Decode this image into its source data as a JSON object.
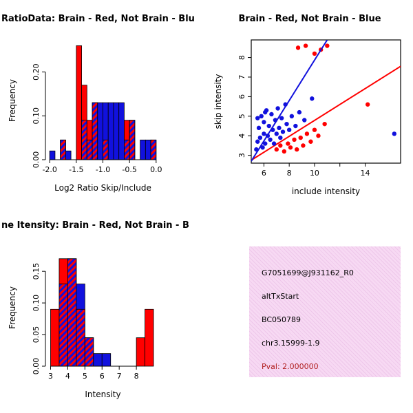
{
  "colors": {
    "red": "#ff0000",
    "blue": "#1111dd",
    "axis": "#000000",
    "pval": "#b22222"
  },
  "chart_data": [
    {
      "type": "bar",
      "id": "hist_ratio",
      "title": "RatioData: Brain - Red, Not Brain - Blu",
      "xlabel": "Log2 Ratio Skip/Include",
      "ylabel": "Frequency",
      "bin_start": -2.0,
      "bin_width": 0.1,
      "series": [
        {
          "name": "Brain (red)",
          "color": "red",
          "values": [
            0,
            0,
            0.045,
            0,
            0,
            0.26,
            0.17,
            0.09,
            0.13,
            0,
            0.045,
            0,
            0,
            0,
            0.09,
            0.09,
            0,
            0,
            0,
            0.045
          ]
        },
        {
          "name": "Not Brain (blue)",
          "color": "blue",
          "values": [
            0.02,
            0,
            0.045,
            0.02,
            0,
            0,
            0.09,
            0.045,
            0.13,
            0.13,
            0.13,
            0.13,
            0.13,
            0.13,
            0.045,
            0.09,
            0,
            0.045,
            0.045,
            0.045
          ]
        }
      ],
      "xticks": [
        {
          "v": -2.0,
          "label": "-2.0"
        },
        {
          "v": -1.5,
          "label": "-1.5"
        },
        {
          "v": -1.0,
          "label": "-1.0"
        },
        {
          "v": -0.5,
          "label": "-0.5"
        },
        {
          "v": 0.0,
          "label": "0.0"
        }
      ],
      "yticks": [
        {
          "v": 0.0,
          "label": "0.00"
        },
        {
          "v": 0.1,
          "label": "0.10"
        },
        {
          "v": 0.2,
          "label": "0.20"
        }
      ],
      "xlim": [
        -2.08,
        0.08
      ],
      "ylim": [
        0,
        0.27
      ],
      "grid": false
    },
    {
      "type": "scatter",
      "id": "scatter_intensity",
      "title": "Brain - Red, Not Brain - Blue",
      "xlabel": "include intensity",
      "ylabel": "skip intensity",
      "series": [
        {
          "name": "Brain (red)",
          "color": "red",
          "points": [
            [
              7.0,
              3.3
            ],
            [
              7.3,
              3.5
            ],
            [
              7.6,
              3.2
            ],
            [
              7.9,
              3.6
            ],
            [
              8.1,
              3.4
            ],
            [
              8.4,
              3.8
            ],
            [
              8.6,
              3.3
            ],
            [
              8.9,
              3.9
            ],
            [
              9.1,
              3.5
            ],
            [
              9.4,
              4.1
            ],
            [
              9.7,
              3.7
            ],
            [
              10.0,
              4.3
            ],
            [
              10.3,
              4.0
            ],
            [
              10.8,
              4.6
            ],
            [
              8.7,
              8.5
            ],
            [
              9.3,
              8.6
            ],
            [
              10.0,
              8.2
            ],
            [
              10.5,
              8.4
            ],
            [
              11.0,
              8.6
            ],
            [
              14.2,
              5.6
            ]
          ],
          "line": [
            [
              5.0,
              2.75
            ],
            [
              16.8,
              7.55
            ]
          ]
        },
        {
          "name": "Not Brain (blue)",
          "color": "blue",
          "points": [
            [
              5.4,
              3.3
            ],
            [
              5.5,
              3.7
            ],
            [
              5.6,
              4.4
            ],
            [
              5.7,
              3.9
            ],
            [
              5.8,
              5.0
            ],
            [
              5.9,
              3.4
            ],
            [
              6.0,
              4.1
            ],
            [
              6.0,
              4.7
            ],
            [
              6.1,
              3.6
            ],
            [
              6.2,
              5.3
            ],
            [
              6.3,
              4.0
            ],
            [
              6.4,
              4.5
            ],
            [
              6.5,
              3.8
            ],
            [
              6.6,
              5.1
            ],
            [
              6.7,
              4.3
            ],
            [
              6.8,
              3.6
            ],
            [
              6.9,
              4.8
            ],
            [
              7.0,
              4.1
            ],
            [
              7.1,
              5.4
            ],
            [
              7.2,
              4.4
            ],
            [
              7.3,
              3.9
            ],
            [
              7.4,
              4.9
            ],
            [
              7.5,
              4.2
            ],
            [
              7.7,
              5.6
            ],
            [
              7.8,
              4.6
            ],
            [
              8.0,
              4.3
            ],
            [
              8.2,
              5.0
            ],
            [
              8.5,
              4.5
            ],
            [
              8.8,
              5.2
            ],
            [
              9.2,
              4.8
            ],
            [
              9.8,
              5.9
            ],
            [
              6.1,
              5.2
            ],
            [
              5.5,
              4.9
            ],
            [
              16.3,
              4.1
            ]
          ],
          "line": [
            [
              5.0,
              2.7
            ],
            [
              11.0,
              8.9
            ]
          ]
        }
      ],
      "xticks": [
        {
          "v": 6,
          "label": "6"
        },
        {
          "v": 8,
          "label": "8"
        },
        {
          "v": 10,
          "label": "10"
        },
        {
          "v": 12,
          "label": ""
        },
        {
          "v": 14,
          "label": "14"
        }
      ],
      "yticks": [
        {
          "v": 3,
          "label": "3"
        },
        {
          "v": 4,
          "label": "4"
        },
        {
          "v": 5,
          "label": "5"
        },
        {
          "v": 6,
          "label": "6"
        },
        {
          "v": 7,
          "label": "7"
        },
        {
          "v": 8,
          "label": "8"
        }
      ],
      "xlim": [
        5.0,
        16.8
      ],
      "ylim": [
        2.6,
        8.9
      ],
      "grid": false
    },
    {
      "type": "bar",
      "id": "hist_intensity",
      "title": "ne Itensity: Brain - Red, Not Brain - B",
      "xlabel": "Intensity",
      "ylabel": "Frequency",
      "bin_start": 3.0,
      "bin_width": 0.5,
      "series": [
        {
          "name": "Brain (red)",
          "color": "red",
          "values": [
            0.09,
            0.17,
            0.17,
            0.09,
            0.045,
            0,
            0,
            0,
            0,
            0,
            0.045,
            0.09
          ]
        },
        {
          "name": "Not Brain (blue)",
          "color": "blue",
          "values": [
            0,
            0.13,
            0.17,
            0.13,
            0.045,
            0.02,
            0.02,
            0,
            0,
            0,
            0,
            0
          ]
        }
      ],
      "xticks": [
        {
          "v": 3,
          "label": "3"
        },
        {
          "v": 4,
          "label": "4"
        },
        {
          "v": 5,
          "label": "5"
        },
        {
          "v": 6,
          "label": "6"
        },
        {
          "v": 7,
          "label": "7"
        },
        {
          "v": 8,
          "label": "8"
        }
      ],
      "yticks": [
        {
          "v": 0.0,
          "label": "0.00"
        },
        {
          "v": 0.05,
          "label": "0.05"
        },
        {
          "v": 0.1,
          "label": "0.10"
        },
        {
          "v": 0.15,
          "label": "0.15"
        }
      ],
      "xlim": [
        2.7,
        9.4
      ],
      "ylim": [
        0,
        0.185
      ],
      "grid": false
    }
  ],
  "info_box": {
    "lines": [
      {
        "text": "G7051699@J931162_R0",
        "color": "#000000"
      },
      {
        "text": "altTxStart",
        "color": "#000000"
      },
      {
        "text": "BC050789",
        "color": "#000000"
      },
      {
        "text": "chr3.15999-1.9",
        "color": "#000000"
      },
      {
        "text": "Pval: 2.000000",
        "color": "#b22222"
      }
    ]
  }
}
